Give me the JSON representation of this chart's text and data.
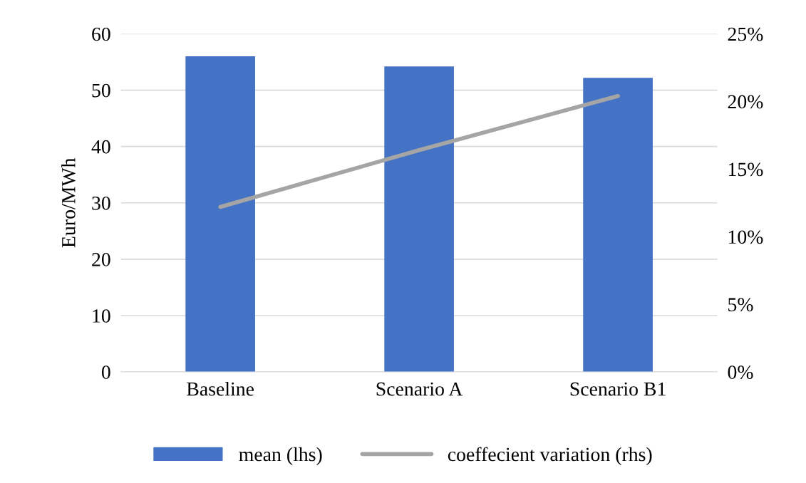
{
  "chart_data": {
    "type": "bar",
    "ylabel": "Euro/MWh",
    "categories": [
      "Baseline",
      "Scenario A",
      "Scenario B1"
    ],
    "series": [
      {
        "name": "mean (lhs)",
        "color": "#4472c4",
        "values": [
          56.0,
          54.2,
          52.2
        ]
      },
      {
        "name": "coeffecient variation (rhs)",
        "type": "line",
        "axis": "y2",
        "color": "#a5a5a5",
        "values": [
          12.2,
          16.4,
          20.4
        ]
      }
    ],
    "ylim": [
      0,
      60
    ],
    "yticks": [
      0,
      10,
      20,
      30,
      40,
      50,
      60
    ],
    "y2lim": [
      0,
      25
    ],
    "y2ticks": [
      {
        "value": 0,
        "label": "0%"
      },
      {
        "value": 5,
        "label": "5%"
      },
      {
        "value": 10,
        "label": "10%"
      },
      {
        "value": 15,
        "label": "15%"
      },
      {
        "value": 20,
        "label": "20%"
      },
      {
        "value": 25,
        "label": "25%"
      }
    ],
    "grid": "y",
    "legend": "bottom"
  }
}
